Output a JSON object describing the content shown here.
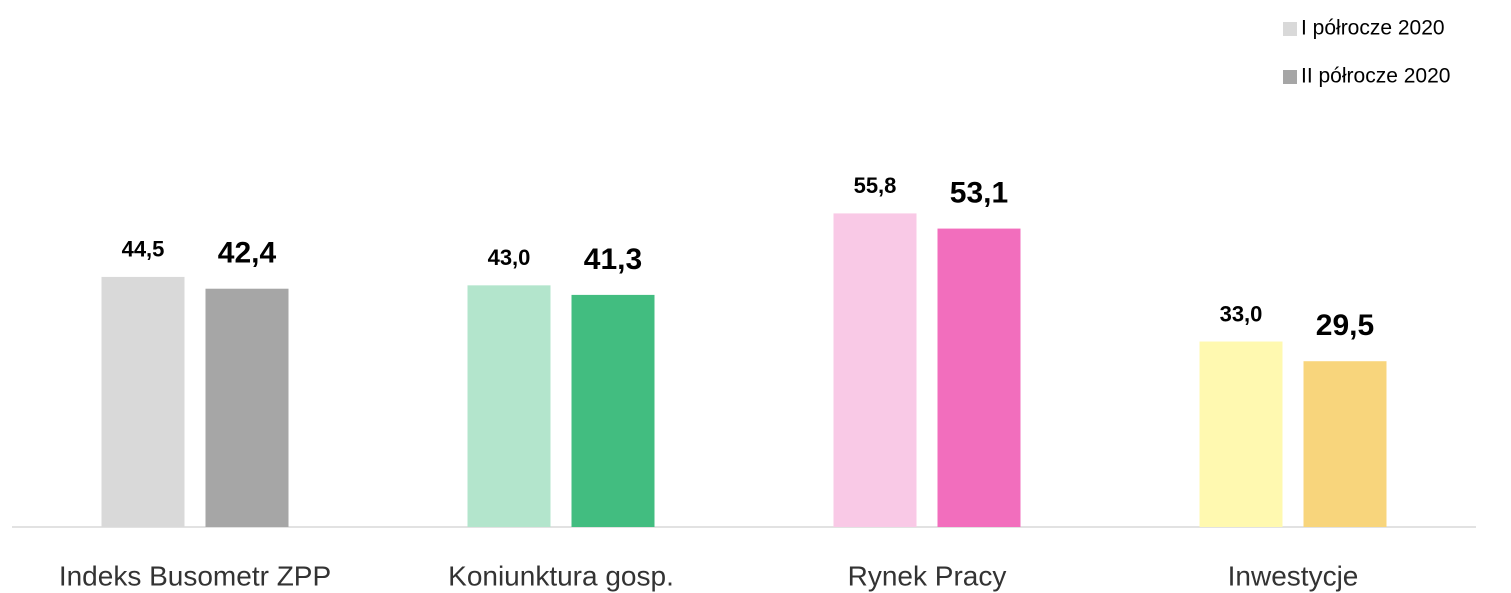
{
  "chart_data": {
    "type": "bar",
    "categories": [
      "Indeks Busometr ZPP",
      "Koniunktura gosp.",
      "Rynek Pracy",
      "Inwestycje"
    ],
    "series": [
      {
        "name": "I półrocze 2020",
        "color": "#d9d9d9",
        "colors": [
          "#d9d9d9",
          "#b3e5cc",
          "#f9c9e6",
          "#fff9b0"
        ],
        "values": [
          44.5,
          43.0,
          55.8,
          33.0
        ],
        "value_labels": [
          "44,5",
          "43,0",
          "55,8",
          "33,0"
        ]
      },
      {
        "name": "II półrocze 2020",
        "color": "#a6a6a6",
        "colors": [
          "#a6a6a6",
          "#42bd80",
          "#f26ebd",
          "#f8d57c"
        ],
        "values": [
          42.4,
          41.3,
          53.1,
          29.5
        ],
        "value_labels": [
          "42,4",
          "41,3",
          "53,1",
          "29,5"
        ]
      }
    ],
    "legend": "top-right"
  }
}
